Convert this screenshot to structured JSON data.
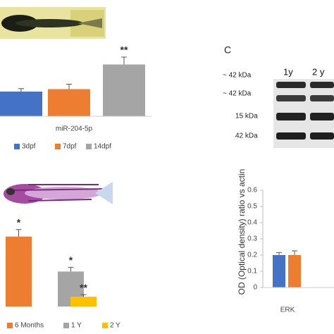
{
  "panel_label": "C",
  "blot": {
    "markers": [
      "~ 42 kDa",
      "~ 42 kDa",
      "15 kDa",
      "42 kDa"
    ],
    "lanes": [
      "1y",
      "2 y"
    ]
  },
  "chart_data": [
    {
      "type": "bar",
      "categories": [
        "miR-204-5p"
      ],
      "ylim": [
        0,
        2.6
      ],
      "series": [
        {
          "name": "3dpf",
          "color": "#4472c4",
          "values": [
            1.0
          ],
          "errors": [
            0.12
          ]
        },
        {
          "name": "7dpf",
          "color": "#ed7d31",
          "values": [
            1.1
          ],
          "errors": [
            0.2
          ]
        },
        {
          "name": "14dpf",
          "color": "#a5a5a5",
          "values": [
            2.1
          ],
          "errors": [
            0.3
          ],
          "annotation": "**"
        }
      ]
    },
    {
      "type": "bar",
      "ylim": [
        0,
        1.4
      ],
      "series": [
        {
          "name": "6 Months",
          "color": "#ed7d31",
          "values": [
            1.0
          ],
          "errors": [
            0.1
          ],
          "annotation": "*"
        },
        {
          "name": "1 Y",
          "color": "#a5a5a5",
          "values": [
            0.5
          ],
          "errors": [
            0.06
          ],
          "annotation": "*"
        },
        {
          "name": "2 Y",
          "color": "#ffc000",
          "values": [
            0.14
          ],
          "errors": [
            0.03
          ],
          "annotation": "**"
        }
      ]
    },
    {
      "type": "bar",
      "ylabel": "OD (Optical density) ratio vs actin",
      "categories": [
        "ERK"
      ],
      "ylim": [
        0,
        0.6
      ],
      "yticks": [
        0,
        0.1,
        0.2,
        0.3,
        0.4,
        0.5,
        0.6
      ],
      "series": [
        {
          "color": "#4472c4",
          "values": [
            0.2
          ],
          "errors": [
            0.016
          ]
        },
        {
          "color": "#ed7d31",
          "values": [
            0.2
          ],
          "errors": [
            0.026
          ]
        }
      ]
    }
  ]
}
